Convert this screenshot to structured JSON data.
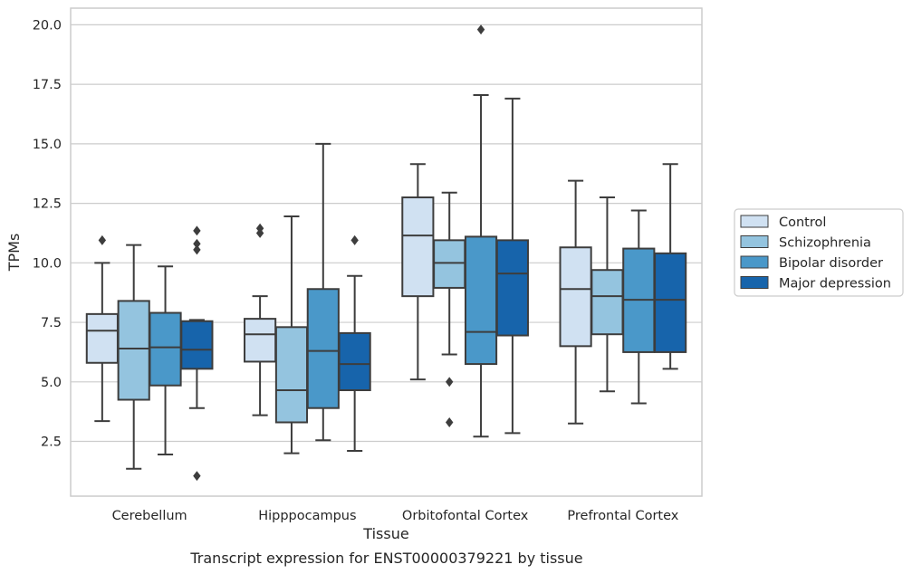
{
  "caption": "Transcript expression for ENST00000379221 by tissue",
  "chart_data": {
    "type": "box",
    "xlabel": "Tissue",
    "ylabel": "TPMs",
    "ylim": [
      0.2,
      20.7
    ],
    "yticks": [
      2.5,
      5.0,
      7.5,
      10.0,
      12.5,
      15.0,
      17.5,
      20.0
    ],
    "grid": "horizontal",
    "legend_position": "right",
    "categories": [
      "Cerebellum",
      "Hipppocampus",
      "Orbitofontal Cortex",
      "Prefrontal Cortex"
    ],
    "series": [
      {
        "name": "Control",
        "color": "#d0e1f2",
        "boxes": [
          {
            "whislo": 3.35,
            "q1": 5.8,
            "med": 7.15,
            "q3": 7.85,
            "whishi": 10.0,
            "fliers": [
              10.95
            ]
          },
          {
            "whislo": 3.6,
            "q1": 5.85,
            "med": 7.0,
            "q3": 7.65,
            "whishi": 8.6,
            "fliers": [
              11.25,
              11.45
            ]
          },
          {
            "whislo": 5.1,
            "q1": 8.6,
            "med": 11.15,
            "q3": 12.75,
            "whishi": 14.15,
            "fliers": []
          },
          {
            "whislo": 3.25,
            "q1": 6.5,
            "med": 8.9,
            "q3": 10.65,
            "whishi": 13.45,
            "fliers": []
          }
        ]
      },
      {
        "name": "Schizophrenia",
        "color": "#94c4df",
        "boxes": [
          {
            "whislo": 1.35,
            "q1": 4.25,
            "med": 6.4,
            "q3": 8.4,
            "whishi": 10.75,
            "fliers": []
          },
          {
            "whislo": 2.0,
            "q1": 3.3,
            "med": 4.65,
            "q3": 7.3,
            "whishi": 11.95,
            "fliers": []
          },
          {
            "whislo": 6.15,
            "q1": 8.95,
            "med": 10.0,
            "q3": 10.95,
            "whishi": 12.95,
            "fliers": [
              5.0,
              3.3
            ]
          },
          {
            "whislo": 4.6,
            "q1": 7.0,
            "med": 8.6,
            "q3": 9.7,
            "whishi": 12.75,
            "fliers": []
          }
        ]
      },
      {
        "name": "Bipolar disorder",
        "color": "#4a98c9",
        "boxes": [
          {
            "whislo": 1.95,
            "q1": 4.85,
            "med": 6.45,
            "q3": 7.9,
            "whishi": 9.85,
            "fliers": []
          },
          {
            "whislo": 2.55,
            "q1": 3.9,
            "med": 6.3,
            "q3": 8.9,
            "whishi": 15.0,
            "fliers": []
          },
          {
            "whislo": 2.7,
            "q1": 5.75,
            "med": 7.1,
            "q3": 11.1,
            "whishi": 17.05,
            "fliers": [
              19.8
            ]
          },
          {
            "whislo": 4.1,
            "q1": 6.25,
            "med": 8.45,
            "q3": 10.6,
            "whishi": 12.2,
            "fliers": []
          }
        ]
      },
      {
        "name": "Major depression",
        "color": "#1764ab",
        "boxes": [
          {
            "whislo": 3.9,
            "q1": 5.55,
            "med": 6.35,
            "q3": 7.55,
            "whishi": 7.6,
            "fliers": [
              11.35,
              10.8,
              10.55,
              1.05
            ]
          },
          {
            "whislo": 2.1,
            "q1": 4.65,
            "med": 5.75,
            "q3": 7.05,
            "whishi": 9.45,
            "fliers": [
              10.95
            ]
          },
          {
            "whislo": 2.85,
            "q1": 6.95,
            "med": 9.55,
            "q3": 10.95,
            "whishi": 16.9,
            "fliers": []
          },
          {
            "whislo": 5.55,
            "q1": 6.25,
            "med": 8.45,
            "q3": 10.4,
            "whishi": 14.15,
            "fliers": []
          }
        ]
      }
    ]
  }
}
